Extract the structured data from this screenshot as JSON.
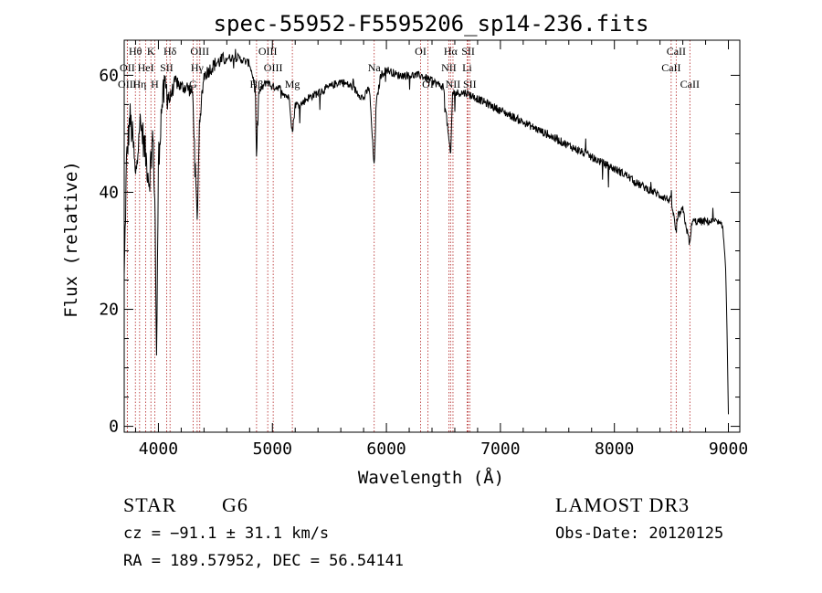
{
  "chart_data": {
    "type": "line",
    "title": "spec-55952-F5595206_sp14-236.fits",
    "xlabel": "Wavelength (Å)",
    "ylabel": "Flux (relative)",
    "xlim": [
      3700,
      9100
    ],
    "ylim": [
      -1,
      66
    ],
    "x_ticks": [
      4000,
      5000,
      6000,
      7000,
      8000,
      9000
    ],
    "y_ticks": [
      0,
      20,
      40,
      60
    ],
    "spectrum_anchors": [
      [
        3700,
        25
      ],
      [
        3720,
        45
      ],
      [
        3750,
        53
      ],
      [
        3780,
        48
      ],
      [
        3800,
        42
      ],
      [
        3830,
        52
      ],
      [
        3860,
        50
      ],
      [
        3890,
        46
      ],
      [
        3920,
        42
      ],
      [
        3950,
        50
      ],
      [
        3970,
        38
      ],
      [
        3985,
        10
      ],
      [
        4000,
        45
      ],
      [
        4030,
        55
      ],
      [
        4060,
        58
      ],
      [
        4100,
        56
      ],
      [
        4150,
        59
      ],
      [
        4200,
        58
      ],
      [
        4250,
        58
      ],
      [
        4300,
        57
      ],
      [
        4340,
        35
      ],
      [
        4360,
        52
      ],
      [
        4400,
        60
      ],
      [
        4450,
        61
      ],
      [
        4500,
        62
      ],
      [
        4600,
        63
      ],
      [
        4700,
        63
      ],
      [
        4800,
        62
      ],
      [
        4850,
        58
      ],
      [
        4861,
        45
      ],
      [
        4880,
        57
      ],
      [
        4950,
        59
      ],
      [
        5000,
        58
      ],
      [
        5050,
        58
      ],
      [
        5100,
        57
      ],
      [
        5150,
        56
      ],
      [
        5175,
        50
      ],
      [
        5200,
        55
      ],
      [
        5250,
        55
      ],
      [
        5300,
        56
      ],
      [
        5400,
        57
      ],
      [
        5500,
        58
      ],
      [
        5600,
        59
      ],
      [
        5700,
        58
      ],
      [
        5800,
        56
      ],
      [
        5850,
        58
      ],
      [
        5893,
        44
      ],
      [
        5910,
        55
      ],
      [
        5950,
        60
      ],
      [
        6000,
        61
      ],
      [
        6100,
        60
      ],
      [
        6200,
        60
      ],
      [
        6300,
        60
      ],
      [
        6400,
        59
      ],
      [
        6500,
        58
      ],
      [
        6563,
        46
      ],
      [
        6580,
        57
      ],
      [
        6700,
        57
      ],
      [
        6800,
        56
      ],
      [
        6900,
        55
      ],
      [
        7000,
        54
      ],
      [
        7100,
        53
      ],
      [
        7200,
        52
      ],
      [
        7300,
        51
      ],
      [
        7400,
        50
      ],
      [
        7500,
        49
      ],
      [
        7600,
        48
      ],
      [
        7700,
        47
      ],
      [
        7800,
        46
      ],
      [
        7900,
        45
      ],
      [
        8000,
        44
      ],
      [
        8100,
        43
      ],
      [
        8200,
        41.5
      ],
      [
        8300,
        40.5
      ],
      [
        8400,
        39.5
      ],
      [
        8500,
        38.5
      ],
      [
        8542,
        33
      ],
      [
        8560,
        36
      ],
      [
        8600,
        37
      ],
      [
        8662,
        31
      ],
      [
        8680,
        35
      ],
      [
        8800,
        35
      ],
      [
        8900,
        35
      ],
      [
        8950,
        34
      ],
      [
        8975,
        28
      ],
      [
        8990,
        15
      ],
      [
        9000,
        2
      ]
    ],
    "lines": [
      {
        "label": "Hθ",
        "wl": 3798,
        "row": 0
      },
      {
        "label": "K",
        "wl": 3934,
        "row": 0
      },
      {
        "label": "Hδ",
        "wl": 4102,
        "row": 0
      },
      {
        "label": "OIII",
        "wl": 4363,
        "row": 0
      },
      {
        "label": "OIII",
        "wl": 4959,
        "row": 0
      },
      {
        "label": "OI",
        "wl": 6300,
        "row": 0
      },
      {
        "label": "Hα",
        "wl": 6563,
        "row": 0
      },
      {
        "label": "SII",
        "wl": 6717,
        "row": 0
      },
      {
        "label": "CaII",
        "wl": 8542,
        "row": 0
      },
      {
        "label": "OII",
        "wl": 3727,
        "row": 1
      },
      {
        "label": "HeI",
        "wl": 3889,
        "row": 1
      },
      {
        "label": "SII",
        "wl": 4072,
        "row": 1
      },
      {
        "label": "Hγ",
        "wl": 4340,
        "row": 1
      },
      {
        "label": "OIII",
        "wl": 5007,
        "row": 1
      },
      {
        "label": "Na",
        "wl": 5893,
        "row": 1
      },
      {
        "label": "NII",
        "wl": 6548,
        "row": 1
      },
      {
        "label": "Li",
        "wl": 6708,
        "row": 1
      },
      {
        "label": "CaII",
        "wl": 8498,
        "row": 1
      },
      {
        "label": "OIII",
        "wl": 3727,
        "row": 2
      },
      {
        "label": "Hη",
        "wl": 3835,
        "row": 2
      },
      {
        "label": "H",
        "wl": 3968,
        "row": 2
      },
      {
        "label": "G",
        "wl": 4304,
        "row": 2
      },
      {
        "label": "Hβ",
        "wl": 4861,
        "row": 2
      },
      {
        "label": "Mg",
        "wl": 5175,
        "row": 2
      },
      {
        "label": "OI",
        "wl": 6364,
        "row": 2
      },
      {
        "label": "NII",
        "wl": 6584,
        "row": 2
      },
      {
        "label": "SII",
        "wl": 6731,
        "row": 2
      },
      {
        "label": "CaII",
        "wl": 8662,
        "row": 2
      }
    ],
    "line_color": "#b22222",
    "spectrum_color": "#000000"
  },
  "info": {
    "object_class": "STAR",
    "subclass": "G6",
    "survey": "LAMOST DR3",
    "cz": "cz = −91.1 ± 31.1 km/s",
    "obs_date": "Obs-Date: 20120125",
    "coords": "RA = 189.57952, DEC =  56.54141"
  }
}
